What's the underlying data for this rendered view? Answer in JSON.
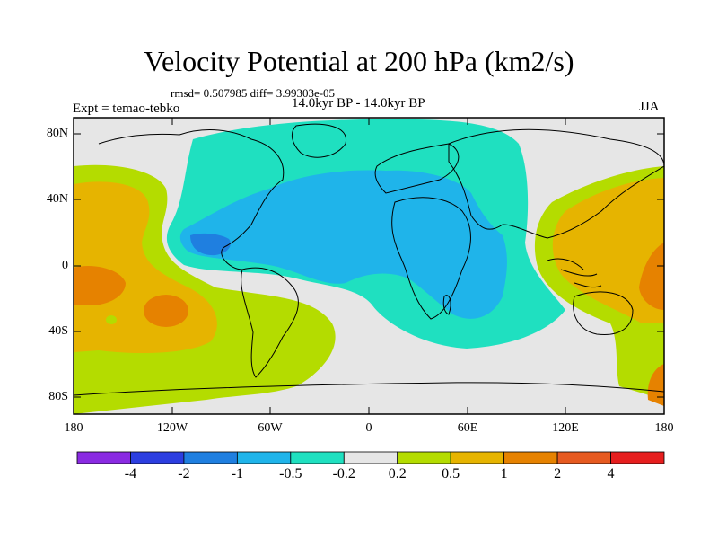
{
  "title": "Velocity Potential at 200 hPa (km2/s)",
  "stats": "rmsd= 0.507985 diff= 3.99303e-05",
  "experiment": "Expt = temao-tebko",
  "period": "14.0kyr BP - 14.0kyr BP",
  "season": "JJA",
  "chart_data": {
    "type": "map",
    "projection": "cylindrical-equidistant",
    "variable": "Velocity Potential at 200 hPa",
    "units": "km2/s",
    "lon_range": [
      -180,
      180
    ],
    "lat_range": [
      -90,
      90
    ],
    "x_ticks": [
      "180",
      "120W",
      "60W",
      "0",
      "60E",
      "120E",
      "180"
    ],
    "y_ticks": [
      "80N",
      "40N",
      "0",
      "40S",
      "80S"
    ],
    "colorbar": {
      "labels": [
        "-4",
        "-2",
        "-1",
        "-0.5",
        "-0.2",
        "0.2",
        "0.5",
        "1",
        "2",
        "4"
      ],
      "colors": [
        "#8a2be2",
        "#2c3ee0",
        "#1f7fe0",
        "#1fb4ea",
        "#1fe0c0",
        "#e6e6e6",
        "#b4dc00",
        "#e6b400",
        "#e68200",
        "#e65a20",
        "#e61e1e"
      ]
    },
    "regions": [
      {
        "name": "negative-anomaly-atlantic-africa",
        "lon": [
          -130,
          100
        ],
        "lat": [
          -50,
          90
        ],
        "level": "-0.5 to -0.2"
      },
      {
        "name": "stronger-negative-core",
        "lon": [
          -110,
          80
        ],
        "lat": [
          -30,
          45
        ],
        "level": "-1 to -0.5"
      },
      {
        "name": "strongest-negative-mexico",
        "lon": [
          -110,
          -90
        ],
        "lat": [
          20,
          30
        ],
        "level": "-2 to -1"
      },
      {
        "name": "positive-anomaly-east-pacific",
        "lon": [
          -180,
          -80
        ],
        "lat": [
          -90,
          60
        ],
        "level": "0.2 to 1"
      },
      {
        "name": "positive-anomaly-west-pacific",
        "lon": [
          105,
          180
        ],
        "lat": [
          -90,
          60
        ],
        "level": "0.2 to 1"
      },
      {
        "name": "positive-core-pacific",
        "lon": [
          -180,
          -150
        ],
        "lat": [
          -30,
          10
        ],
        "level": "1 to 2"
      }
    ]
  }
}
